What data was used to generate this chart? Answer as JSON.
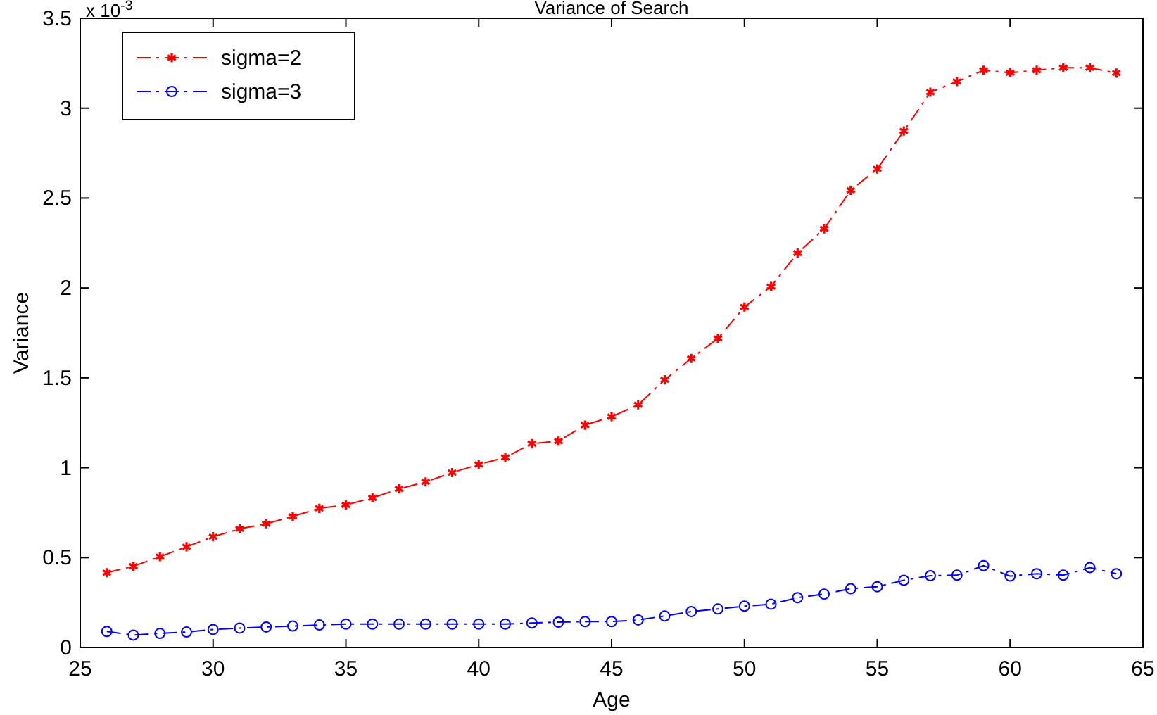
{
  "chart_data": {
    "type": "line",
    "title": "Variance of Search",
    "xlabel": "Age",
    "ylabel": "Variance",
    "annotations": [
      "x 10$^{-3}$"
    ],
    "x": [
      26,
      27,
      28,
      29,
      30,
      31,
      32,
      33,
      34,
      35,
      36,
      37,
      38,
      39,
      40,
      41,
      42,
      43,
      44,
      45,
      46,
      47,
      48,
      49,
      50,
      51,
      52,
      53,
      54,
      55,
      56,
      57,
      58,
      59,
      60,
      61,
      62,
      63,
      64
    ],
    "series": [
      {
        "name": "sigma=2",
        "color": "#ff0000",
        "marker": "cross",
        "values": [
          0.416,
          0.452,
          0.505,
          0.56,
          0.616,
          0.66,
          0.688,
          0.729,
          0.774,
          0.793,
          0.832,
          0.882,
          0.921,
          0.973,
          1.018,
          1.057,
          1.134,
          1.148,
          1.237,
          1.284,
          1.35,
          1.489,
          1.608,
          1.719,
          1.894,
          2.008,
          2.194,
          2.329,
          2.543,
          2.662,
          2.873,
          3.089,
          3.148,
          3.211,
          3.197,
          3.211,
          3.225,
          3.225,
          3.195
        ]
      },
      {
        "name": "sigma=3",
        "color": "#0000ff",
        "marker": "circle",
        "values": [
          0.089,
          0.069,
          0.078,
          0.086,
          0.1,
          0.108,
          0.114,
          0.119,
          0.125,
          0.13,
          0.13,
          0.13,
          0.13,
          0.13,
          0.13,
          0.13,
          0.136,
          0.141,
          0.144,
          0.144,
          0.153,
          0.175,
          0.2,
          0.214,
          0.23,
          0.241,
          0.277,
          0.297,
          0.327,
          0.338,
          0.374,
          0.399,
          0.402,
          0.455,
          0.397,
          0.41,
          0.402,
          0.444,
          0.41
        ]
      }
    ],
    "xlim": [
      25,
      65
    ],
    "xticks": [
      25,
      30,
      35,
      40,
      45,
      50,
      55,
      60,
      65
    ],
    "ylim": [
      0,
      3.5
    ],
    "yticks": [
      0,
      0.5,
      1,
      1.5,
      2,
      2.5,
      3,
      3.5
    ],
    "grid": false,
    "legend": "top left",
    "line_style": "dashed"
  }
}
